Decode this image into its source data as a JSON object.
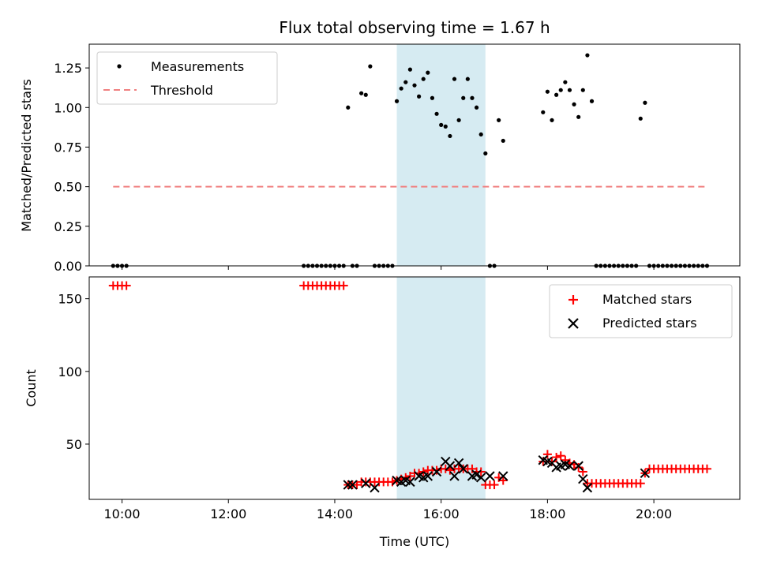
{
  "chart_data": [
    {
      "type": "scatter",
      "title": "Flux total observing time = 1.67 h",
      "xlabel": "",
      "ylabel": "Matched/Predicted stars",
      "xlim": [
        "09:23",
        "21:37"
      ],
      "ylim": [
        0,
        1.4
      ],
      "yticks": [
        0.0,
        0.25,
        0.5,
        0.75,
        1.0,
        1.25
      ],
      "ytick_labels": [
        "0.00",
        "0.25",
        "0.50",
        "0.75",
        "1.00",
        "1.25"
      ],
      "legend": {
        "placement": "top-left",
        "entries": [
          "Measurements",
          "Threshold"
        ]
      },
      "highlight_span": [
        "15:10",
        "16:50"
      ],
      "threshold": {
        "name": "Threshold",
        "value": 0.5,
        "x_range": [
          "09:50",
          "21:00"
        ],
        "color": "#f08080"
      },
      "series": [
        {
          "name": "Measurements",
          "color": "#000000",
          "x": [
            "09:50",
            "09:55",
            "10:00",
            "10:05",
            "13:25",
            "13:30",
            "13:35",
            "13:40",
            "13:45",
            "13:50",
            "13:55",
            "14:00",
            "14:05",
            "14:10",
            "14:15",
            "14:20",
            "14:25",
            "14:30",
            "14:35",
            "14:40",
            "14:45",
            "14:50",
            "14:55",
            "15:00",
            "15:05",
            "15:10",
            "15:15",
            "15:20",
            "15:25",
            "15:30",
            "15:35",
            "15:40",
            "15:45",
            "15:50",
            "15:55",
            "16:00",
            "16:05",
            "16:10",
            "16:15",
            "16:20",
            "16:25",
            "16:30",
            "16:35",
            "16:40",
            "16:45",
            "16:50",
            "16:55",
            "17:00",
            "17:05",
            "17:10",
            "17:55",
            "18:00",
            "18:05",
            "18:10",
            "18:15",
            "18:20",
            "18:25",
            "18:30",
            "18:35",
            "18:40",
            "18:45",
            "18:50",
            "18:55",
            "19:00",
            "19:05",
            "19:10",
            "19:15",
            "19:20",
            "19:25",
            "19:30",
            "19:35",
            "19:40",
            "19:45",
            "19:50",
            "19:55",
            "20:00",
            "20:05",
            "20:10",
            "20:15",
            "20:20",
            "20:25",
            "20:30",
            "20:35",
            "20:40",
            "20:45",
            "20:50",
            "20:55",
            "21:00"
          ],
          "y": [
            0,
            0,
            0,
            0,
            0,
            0,
            0,
            0,
            0,
            0,
            0,
            0,
            0,
            0,
            1.0,
            0,
            0,
            1.09,
            1.08,
            1.26,
            0,
            0,
            0,
            0,
            0,
            1.04,
            1.12,
            1.16,
            1.24,
            1.14,
            1.07,
            1.18,
            1.22,
            1.06,
            0.96,
            0.89,
            0.88,
            0.82,
            1.18,
            0.92,
            1.06,
            1.18,
            1.06,
            1.0,
            0.83,
            0.71,
            0,
            0,
            0.92,
            0.79,
            0.97,
            1.1,
            0.92,
            1.08,
            1.11,
            1.16,
            1.11,
            1.02,
            0.94,
            1.11,
            1.33,
            1.04,
            0,
            0,
            0,
            0,
            0,
            0,
            0,
            0,
            0,
            0,
            0.93,
            1.03,
            0,
            0,
            0,
            0,
            0,
            0,
            0,
            0,
            0,
            0,
            0,
            0,
            0,
            0
          ]
        }
      ]
    },
    {
      "type": "scatter",
      "title": "",
      "xlabel": "Time (UTC)",
      "ylabel": "Count",
      "xlim": [
        "09:23",
        "21:37"
      ],
      "ylim": [
        12,
        165
      ],
      "xticks": [
        "10:00",
        "12:00",
        "14:00",
        "16:00",
        "18:00",
        "20:00"
      ],
      "yticks": [
        50,
        100,
        150
      ],
      "ytick_labels": [
        "50",
        "100",
        "150"
      ],
      "legend": {
        "placement": "top-right",
        "entries": [
          "Matched stars",
          "Predicted stars"
        ]
      },
      "highlight_span": [
        "15:10",
        "16:50"
      ],
      "series": [
        {
          "name": "Matched stars",
          "marker": "plus",
          "color": "#ff0000",
          "x": [
            "09:50",
            "09:55",
            "10:00",
            "10:05",
            "13:25",
            "13:30",
            "13:35",
            "13:40",
            "13:45",
            "13:50",
            "13:55",
            "14:00",
            "14:05",
            "14:10",
            "14:15",
            "14:20",
            "14:25",
            "14:30",
            "14:35",
            "14:40",
            "14:45",
            "14:50",
            "14:55",
            "15:00",
            "15:05",
            "15:10",
            "15:15",
            "15:20",
            "15:25",
            "15:30",
            "15:35",
            "15:40",
            "15:45",
            "15:50",
            "15:55",
            "16:00",
            "16:05",
            "16:10",
            "16:15",
            "16:20",
            "16:25",
            "16:30",
            "16:35",
            "16:40",
            "16:45",
            "16:50",
            "16:55",
            "17:00",
            "17:05",
            "17:10",
            "17:55",
            "18:00",
            "18:05",
            "18:10",
            "18:15",
            "18:20",
            "18:25",
            "18:30",
            "18:35",
            "18:40",
            "18:45",
            "18:50",
            "18:55",
            "19:00",
            "19:05",
            "19:10",
            "19:15",
            "19:20",
            "19:25",
            "19:30",
            "19:35",
            "19:40",
            "19:45",
            "19:50",
            "19:55",
            "20:00",
            "20:05",
            "20:10",
            "20:15",
            "20:20",
            "20:25",
            "20:30",
            "20:35",
            "20:40",
            "20:45",
            "20:50",
            "20:55",
            "21:00"
          ],
          "y": [
            159,
            159,
            159,
            159,
            159,
            159,
            159,
            159,
            159,
            159,
            159,
            159,
            159,
            159,
            22,
            22,
            22,
            24,
            24,
            24,
            24,
            24,
            24,
            24,
            24,
            25,
            26,
            27,
            28,
            30,
            30,
            31,
            32,
            32,
            32,
            33,
            33,
            32,
            33,
            33,
            33,
            33,
            33,
            31,
            31,
            22,
            22,
            22,
            27,
            25,
            38,
            43,
            38,
            41,
            42,
            39,
            37,
            36,
            34,
            31,
            23,
            23,
            23,
            23,
            23,
            23,
            23,
            23,
            23,
            23,
            23,
            23,
            23,
            30,
            33,
            33,
            33,
            33,
            33,
            33,
            33,
            33,
            33,
            33,
            33,
            33,
            33,
            33
          ]
        },
        {
          "name": "Predicted stars",
          "marker": "x",
          "color": "#000000",
          "x": [
            "14:15",
            "14:20",
            "14:35",
            "14:45",
            "15:10",
            "15:15",
            "15:20",
            "15:25",
            "15:35",
            "15:40",
            "15:45",
            "15:55",
            "16:05",
            "16:10",
            "16:15",
            "16:20",
            "16:25",
            "16:35",
            "16:40",
            "16:45",
            "16:55",
            "17:10",
            "17:55",
            "18:00",
            "18:05",
            "18:10",
            "18:15",
            "18:20",
            "18:25",
            "18:35",
            "18:40",
            "18:45",
            "19:50"
          ],
          "y": [
            22,
            22,
            23,
            20,
            25,
            24,
            25,
            24,
            28,
            27,
            28,
            31,
            38,
            35,
            28,
            37,
            33,
            28,
            29,
            27,
            28,
            28,
            39,
            38,
            37,
            34,
            35,
            36,
            35,
            35,
            26,
            20,
            30
          ]
        }
      ]
    }
  ]
}
